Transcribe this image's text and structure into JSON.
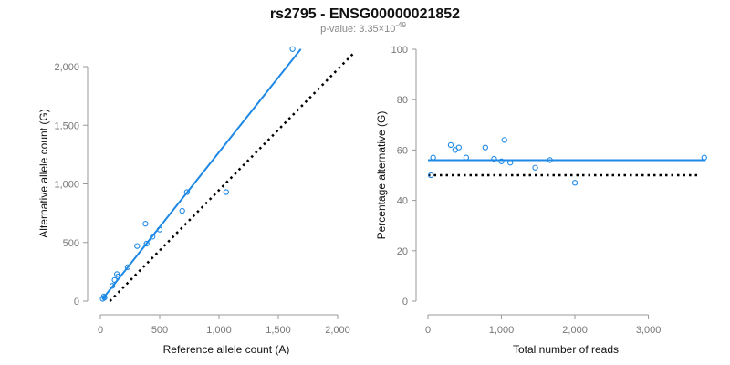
{
  "figure": {
    "title": "rs2795 - ENSG00000021852",
    "subtitle_prefix": "p-value: 3.35×10",
    "subtitle_exponent": "-49"
  },
  "colors": {
    "series": "#1e88e5",
    "reference": "#000000",
    "axis": "#999999"
  },
  "chart_data": [
    {
      "type": "scatter",
      "name": "allele-counts",
      "xlabel": "Reference allele count (A)",
      "ylabel": "Alternative allele count (G)",
      "xlim": [
        0,
        2000
      ],
      "ylim": [
        0,
        2000
      ],
      "xticks": [
        0,
        500,
        1000,
        1500,
        2000
      ],
      "xtick_labels": [
        "0",
        "500",
        "1,000",
        "1,500",
        "2,000"
      ],
      "yticks": [
        0,
        500,
        1000,
        1500,
        2000
      ],
      "ytick_labels": [
        "0",
        "500",
        "1,000",
        "1,500",
        "2,000"
      ],
      "points": [
        {
          "x": 20,
          "y": 20
        },
        {
          "x": 30,
          "y": 40
        },
        {
          "x": 35,
          "y": 30
        },
        {
          "x": 100,
          "y": 130
        },
        {
          "x": 120,
          "y": 180
        },
        {
          "x": 140,
          "y": 230
        },
        {
          "x": 150,
          "y": 210
        },
        {
          "x": 230,
          "y": 290
        },
        {
          "x": 310,
          "y": 470
        },
        {
          "x": 380,
          "y": 660
        },
        {
          "x": 390,
          "y": 490
        },
        {
          "x": 440,
          "y": 550
        },
        {
          "x": 500,
          "y": 610
        },
        {
          "x": 690,
          "y": 770
        },
        {
          "x": 730,
          "y": 930
        },
        {
          "x": 1060,
          "y": 930
        },
        {
          "x": 1620,
          "y": 2150
        }
      ],
      "fit_line": {
        "x": [
          20,
          1690
        ],
        "y": [
          20,
          2150
        ]
      },
      "reference_line": {
        "x": [
          80,
          2140
        ],
        "y": [
          0,
          2120
        ]
      }
    },
    {
      "type": "scatter",
      "name": "percentage-alternative",
      "xlabel": "Total number of reads",
      "ylabel": "Percentage alternative (G)",
      "xlim": [
        0,
        3800
      ],
      "ylim": [
        0,
        100
      ],
      "xticks": [
        0,
        1000,
        2000,
        3000
      ],
      "xtick_labels": [
        "0",
        "1,000",
        "2,000",
        "3,000"
      ],
      "yticks": [
        0,
        20,
        40,
        60,
        80,
        100
      ],
      "ytick_labels": [
        "0",
        "20",
        "40",
        "60",
        "80",
        "100"
      ],
      "points": [
        {
          "x": 40,
          "y": 50
        },
        {
          "x": 70,
          "y": 57
        },
        {
          "x": 310,
          "y": 62
        },
        {
          "x": 370,
          "y": 60
        },
        {
          "x": 420,
          "y": 61
        },
        {
          "x": 520,
          "y": 57
        },
        {
          "x": 780,
          "y": 61
        },
        {
          "x": 900,
          "y": 56.5
        },
        {
          "x": 1000,
          "y": 55.5
        },
        {
          "x": 1040,
          "y": 64
        },
        {
          "x": 1120,
          "y": 55
        },
        {
          "x": 1460,
          "y": 53
        },
        {
          "x": 1660,
          "y": 56
        },
        {
          "x": 2000,
          "y": 47
        },
        {
          "x": 3760,
          "y": 57
        }
      ],
      "fit_line": {
        "x": [
          0,
          3780
        ],
        "y": [
          56,
          56
        ]
      },
      "reference_line": {
        "x": [
          0,
          3700
        ],
        "y": [
          50,
          50
        ]
      }
    }
  ]
}
